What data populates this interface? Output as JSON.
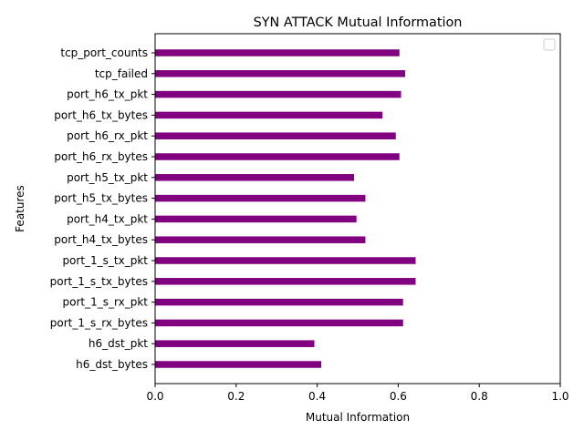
{
  "chart_data": {
    "type": "bar",
    "orientation": "horizontal",
    "title": "SYN ATTACK Mutual Information",
    "xlabel": "Mutual Information",
    "ylabel": "Features",
    "xlim": [
      0.0,
      1.0
    ],
    "x_ticks": [
      0.0,
      0.2,
      0.4,
      0.6,
      0.8,
      1.0
    ],
    "x_tick_labels": [
      "0.0",
      "0.2",
      "0.4",
      "0.6",
      "0.8",
      "1.0"
    ],
    "bar_color": "#800080",
    "grid": false,
    "legend": {
      "placement": "top-right",
      "entries": []
    },
    "categories": [
      "tcp_port_counts",
      "tcp_failed",
      "port_h6_tx_pkt",
      "port_h6_tx_bytes",
      "port_h6_rx_pkt",
      "port_h6_rx_bytes",
      "port_h5_tx_pkt",
      "port_h5_tx_bytes",
      "port_h4_tx_pkt",
      "port_h4_tx_bytes",
      "port_1_s_tx_pkt",
      "port_1_s_tx_bytes",
      "port_1_s_rx_pkt",
      "port_1_s_rx_bytes",
      "h6_dst_pkt",
      "h6_dst_bytes"
    ],
    "values": [
      0.603,
      0.617,
      0.607,
      0.561,
      0.594,
      0.603,
      0.491,
      0.519,
      0.497,
      0.519,
      0.643,
      0.643,
      0.612,
      0.612,
      0.393,
      0.41
    ]
  }
}
